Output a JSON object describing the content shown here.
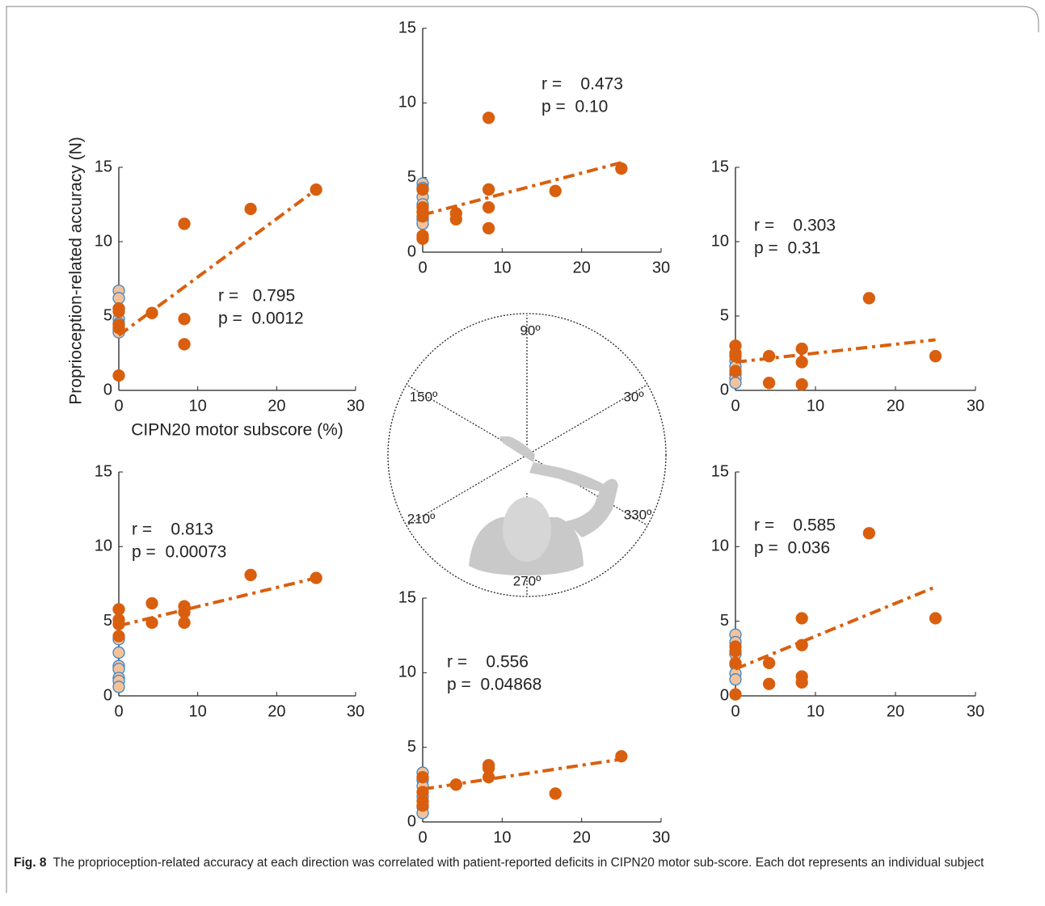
{
  "chart_data": [
    {
      "type": "scatter",
      "x_label": "CIPN20 motor subscore (%)",
      "y_label": "Proprioception-related accuracy (N)",
      "xlim": [
        0,
        30
      ],
      "ylim": [
        0,
        15
      ],
      "xticks": [
        0,
        10,
        20,
        30
      ],
      "yticks": [
        0,
        5,
        10,
        15
      ],
      "annotations": [
        "r =   0.795",
        "p =  0.0012"
      ],
      "series": [
        {
          "color": "#f3c29b",
          "edge_color": "#3f86c8",
          "x": [
            0,
            0,
            0,
            0,
            0,
            0,
            0
          ],
          "y": [
            6.7,
            6.2,
            5.5,
            4.8,
            4.5,
            4.1,
            3.9
          ]
        },
        {
          "color": "#d95f0e",
          "x": [
            0,
            0,
            0,
            0,
            0,
            4.2,
            8.3,
            8.3,
            8.3,
            16.7,
            25
          ],
          "y": [
            5.5,
            5.3,
            4.4,
            4.2,
            1.0,
            5.2,
            11.2,
            4.8,
            3.1,
            12.2,
            13.5
          ]
        }
      ],
      "fit": {
        "color": "#d95f0e",
        "x": [
          0,
          25
        ],
        "y": [
          3.7,
          13.5
        ]
      }
    },
    {
      "type": "scatter",
      "xlim": [
        0,
        30
      ],
      "ylim": [
        0,
        15
      ],
      "xticks": [
        0,
        10,
        20,
        30
      ],
      "yticks": [
        0,
        5,
        10,
        15
      ],
      "annotations": [
        "r =    0.473",
        "p =  0.10"
      ],
      "series": [
        {
          "color": "#f3c29b",
          "edge_color": "#3f86c8",
          "x": [
            0,
            0,
            0,
            0,
            0,
            0,
            0
          ],
          "y": [
            4.6,
            4.3,
            3.7,
            3.2,
            2.7,
            2.2,
            1.9
          ]
        },
        {
          "color": "#d95f0e",
          "x": [
            0,
            0,
            0,
            0,
            0,
            0,
            4.2,
            4.2,
            8.3,
            8.3,
            8.3,
            8.3,
            16.7,
            25
          ],
          "y": [
            4.2,
            3.0,
            2.7,
            2.4,
            1.1,
            0.9,
            2.6,
            2.2,
            9.0,
            4.2,
            3.0,
            1.6,
            4.1,
            5.6
          ]
        }
      ],
      "fit": {
        "color": "#d95f0e",
        "x": [
          0,
          25
        ],
        "y": [
          2.5,
          6.0
        ]
      }
    },
    {
      "type": "scatter",
      "xlim": [
        0,
        30
      ],
      "ylim": [
        0,
        15
      ],
      "xticks": [
        0,
        10,
        20,
        30
      ],
      "yticks": [
        0,
        5,
        10,
        15
      ],
      "annotations": [
        "r =    0.303",
        "p =  0.31"
      ],
      "series": [
        {
          "color": "#f3c29b",
          "edge_color": "#3f86c8",
          "x": [
            0,
            0,
            0,
            0,
            0
          ],
          "y": [
            2.0,
            1.6,
            1.1,
            0.8,
            0.5
          ]
        },
        {
          "color": "#d95f0e",
          "x": [
            0,
            0,
            0,
            0,
            4.2,
            4.2,
            8.3,
            8.3,
            8.3,
            16.7,
            25
          ],
          "y": [
            3.0,
            2.5,
            2.3,
            1.3,
            2.3,
            0.5,
            2.8,
            1.9,
            0.4,
            6.2,
            2.3
          ]
        }
      ],
      "fit": {
        "color": "#d95f0e",
        "x": [
          0,
          25
        ],
        "y": [
          1.9,
          3.4
        ]
      }
    },
    {
      "type": "scatter",
      "xlim": [
        0,
        30
      ],
      "ylim": [
        0,
        15
      ],
      "xticks": [
        0,
        10,
        20,
        30
      ],
      "yticks": [
        0,
        5,
        10,
        15
      ],
      "annotations": [
        "r =    0.813",
        "p =  0.00073"
      ],
      "series": [
        {
          "color": "#f3c29b",
          "edge_color": "#3f86c8",
          "x": [
            0,
            0,
            0,
            0,
            0,
            0,
            0
          ],
          "y": [
            3.8,
            2.9,
            2.0,
            1.8,
            1.2,
            1.0,
            0.6
          ]
        },
        {
          "color": "#d95f0e",
          "x": [
            0,
            0,
            0,
            0,
            4.2,
            4.2,
            8.3,
            8.3,
            8.3,
            16.7,
            25
          ],
          "y": [
            5.8,
            5.1,
            4.8,
            4.0,
            6.2,
            4.9,
            6.0,
            5.6,
            4.9,
            8.1,
            7.9
          ]
        }
      ],
      "fit": {
        "color": "#d95f0e",
        "x": [
          0,
          25
        ],
        "y": [
          4.7,
          7.9
        ]
      }
    },
    {
      "type": "scatter",
      "xlim": [
        0,
        30
      ],
      "ylim": [
        0,
        15
      ],
      "xticks": [
        0,
        10,
        20,
        30
      ],
      "yticks": [
        0,
        5,
        10,
        15
      ],
      "annotations": [
        "r =    0.556",
        "p =  0.04868"
      ],
      "series": [
        {
          "color": "#f3c29b",
          "edge_color": "#3f86c8",
          "x": [
            0,
            0,
            0,
            0,
            0,
            0
          ],
          "y": [
            3.3,
            2.8,
            2.4,
            1.7,
            1.0,
            0.6
          ]
        },
        {
          "color": "#d95f0e",
          "x": [
            0,
            0,
            0,
            0,
            4.2,
            8.3,
            8.3,
            8.3,
            16.7,
            25
          ],
          "y": [
            3.0,
            2.0,
            1.4,
            1.1,
            2.5,
            3.8,
            3.6,
            3.0,
            1.9,
            4.4
          ]
        }
      ],
      "fit": {
        "color": "#d95f0e",
        "x": [
          0,
          25
        ],
        "y": [
          2.2,
          4.2
        ]
      }
    },
    {
      "type": "scatter",
      "xlim": [
        0,
        30
      ],
      "ylim": [
        0,
        15
      ],
      "xticks": [
        0,
        10,
        20,
        30
      ],
      "yticks": [
        0,
        5,
        10,
        15
      ],
      "annotations": [
        "r =    0.585",
        "p =  0.036"
      ],
      "series": [
        {
          "color": "#f3c29b",
          "edge_color": "#3f86c8",
          "x": [
            0,
            0,
            0,
            0,
            0,
            0
          ],
          "y": [
            4.1,
            3.6,
            2.8,
            2.1,
            1.5,
            1.1
          ]
        },
        {
          "color": "#d95f0e",
          "x": [
            0,
            0,
            0,
            0,
            4.2,
            4.2,
            8.3,
            8.3,
            8.3,
            8.3,
            16.7,
            25
          ],
          "y": [
            3.3,
            3.0,
            2.2,
            0.1,
            2.2,
            0.8,
            5.2,
            3.4,
            1.3,
            0.9,
            10.9,
            5.2
          ]
        }
      ],
      "fit": {
        "color": "#d95f0e",
        "x": [
          0,
          25
        ],
        "y": [
          1.8,
          7.3
        ]
      }
    }
  ],
  "diagram": {
    "labels": [
      "90º",
      "30º",
      "150º",
      "210º",
      "330º",
      "270º"
    ]
  },
  "caption": {
    "label": "Fig. 8",
    "text": "The proprioception-related accuracy at each direction was correlated with patient-reported deficits in CIPN20 motor sub-score. Each dot represents an individual subject"
  }
}
